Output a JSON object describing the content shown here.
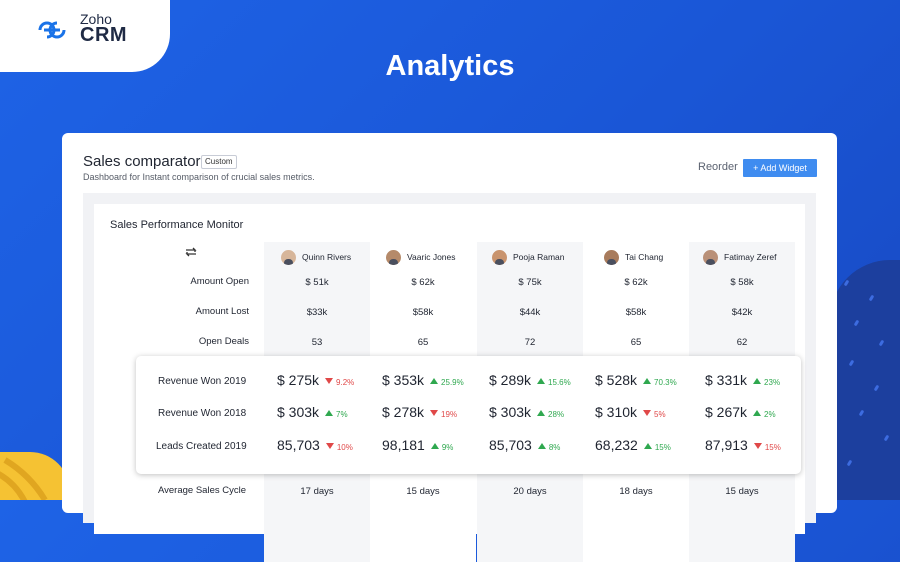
{
  "brand": {
    "zoho": "Zoho",
    "crm": "CRM"
  },
  "page_title": "Analytics",
  "card": {
    "title": "Sales comparator",
    "badge": "Custom",
    "subtitle": "Dashboard for Instant comparison of crucial sales metrics.",
    "reorder": "Reorder",
    "add_widget": "+ Add Widget"
  },
  "widget": {
    "title": "Sales Performance Monitor",
    "people": [
      "Quinn Rivers",
      "Vaaric Jones",
      "Pooja Raman",
      "Tai Chang",
      "Fatimay Zeref"
    ],
    "rows": [
      {
        "label": "Amount Open",
        "values": [
          "$ 51k",
          "$ 62k",
          "$ 75k",
          "$ 62k",
          "$ 58k"
        ]
      },
      {
        "label": "Amount Lost",
        "values": [
          "$33k",
          "$58k",
          "$44k",
          "$58k",
          "$42k"
        ]
      },
      {
        "label": "Open Deals",
        "values": [
          "53",
          "65",
          "72",
          "65",
          "62"
        ]
      }
    ],
    "highlight_rows": [
      {
        "label": "Revenue Won 2019",
        "values": [
          {
            "v": "$ 275k",
            "pct": "9.2%",
            "dir": "down"
          },
          {
            "v": "$ 353k",
            "pct": "25.9%",
            "dir": "up"
          },
          {
            "v": "$ 289k",
            "pct": "15.6%",
            "dir": "up"
          },
          {
            "v": "$ 528k",
            "pct": "70.3%",
            "dir": "up"
          },
          {
            "v": "$ 331k",
            "pct": "23%",
            "dir": "up"
          }
        ]
      },
      {
        "label": "Revenue Won 2018",
        "values": [
          {
            "v": "$ 303k",
            "pct": "7%",
            "dir": "up"
          },
          {
            "v": "$ 278k",
            "pct": "19%",
            "dir": "down"
          },
          {
            "v": "$ 303k",
            "pct": "28%",
            "dir": "up"
          },
          {
            "v": "$ 310k",
            "pct": "5%",
            "dir": "down"
          },
          {
            "v": "$ 267k",
            "pct": "2%",
            "dir": "up"
          }
        ]
      },
      {
        "label": "Leads Created 2019",
        "values": [
          {
            "v": "85,703",
            "pct": "10%",
            "dir": "down"
          },
          {
            "v": "98,181",
            "pct": "9%",
            "dir": "up"
          },
          {
            "v": "85,703",
            "pct": "8%",
            "dir": "up"
          },
          {
            "v": "68,232",
            "pct": "15%",
            "dir": "up"
          },
          {
            "v": "87,913",
            "pct": "15%",
            "dir": "down"
          }
        ]
      }
    ],
    "bottom_row": {
      "label": "Average Sales Cycle",
      "values": [
        "17 days",
        "15 days",
        "20 days",
        "18 days",
        "15 days"
      ]
    }
  },
  "colors": {
    "background": "#1e63e6",
    "accent": "#3f8cf0",
    "up": "#2fa84f",
    "down": "#e04848"
  },
  "icons": {
    "logo": "zoho-logo-icon",
    "swap": "swap-arrows-icon"
  }
}
